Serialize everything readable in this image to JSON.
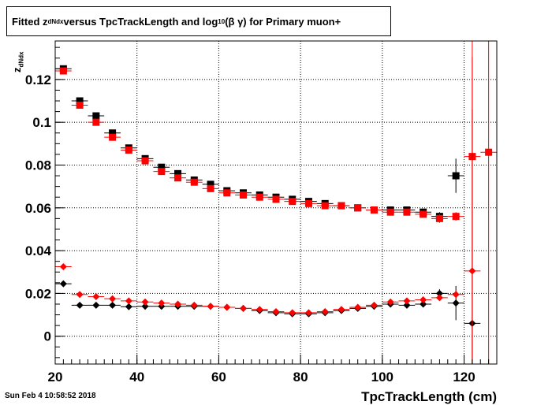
{
  "title": {
    "prefix": "Fitted  z",
    "prefix_sub": "dNdx",
    "middle": "  versus TpcTrackLength and log",
    "middle_sub": "10",
    "suffix": " (β γ) for Primary muon+"
  },
  "timestamp": "Sun Feb  4 10:58:52 2018",
  "chart_data": {
    "type": "scatter",
    "xlabel": "TpcTrackLength (cm)",
    "ylabel": "z",
    "ylabel_sub": "dNdx",
    "xlim": [
      20,
      128
    ],
    "ylim": [
      -0.013,
      0.138
    ],
    "xticks": [
      20,
      40,
      60,
      80,
      100,
      120
    ],
    "yticks": [
      0,
      0.02,
      0.04,
      0.06,
      0.08,
      0.1,
      0.12
    ],
    "ytick_labels": [
      "0",
      "0.02",
      "0.04",
      "0.06",
      "0.08",
      "0.1",
      "0.12"
    ],
    "grid": true,
    "series": [
      {
        "marker": "square",
        "color": "#000000",
        "xerr": 2,
        "x": [
          22,
          26,
          30,
          34,
          38,
          42,
          46,
          50,
          54,
          58,
          62,
          66,
          70,
          74,
          78,
          82,
          86,
          90,
          94,
          98,
          102,
          106,
          110,
          114,
          118
        ],
        "y": [
          0.125,
          0.11,
          0.103,
          0.095,
          0.088,
          0.083,
          0.079,
          0.076,
          0.073,
          0.071,
          0.068,
          0.067,
          0.066,
          0.065,
          0.064,
          0.063,
          0.062,
          0.061,
          0.06,
          0.059,
          0.059,
          0.059,
          0.058,
          0.056,
          0.075
        ],
        "yerr": [
          0.001,
          0.001,
          0.001,
          0.001,
          0.001,
          0.001,
          0.001,
          0.001,
          0.001,
          0.001,
          0.001,
          0.001,
          0.001,
          0.001,
          0.001,
          0.001,
          0.001,
          0.001,
          0.001,
          0.001,
          0.001,
          0.001,
          0.001,
          0.002,
          0.008
        ]
      },
      {
        "marker": "square",
        "color": "#ff0000",
        "xerr": 2,
        "x": [
          22,
          26,
          30,
          34,
          38,
          42,
          46,
          50,
          54,
          58,
          62,
          66,
          70,
          74,
          78,
          82,
          86,
          90,
          94,
          98,
          102,
          106,
          110,
          114,
          118,
          122,
          126
        ],
        "y": [
          0.124,
          0.108,
          0.1,
          0.093,
          0.087,
          0.082,
          0.077,
          0.074,
          0.072,
          0.069,
          0.067,
          0.066,
          0.065,
          0.064,
          0.063,
          0.062,
          0.061,
          0.061,
          0.06,
          0.059,
          0.058,
          0.058,
          0.057,
          0.055,
          0.056,
          0.084,
          0.086
        ],
        "yerr": [
          0.001,
          0.001,
          0.001,
          0.001,
          0.001,
          0.001,
          0.001,
          0.001,
          0.001,
          0.001,
          0.001,
          0.001,
          0.001,
          0.001,
          0.001,
          0.001,
          0.001,
          0.001,
          0.001,
          0.001,
          0.001,
          0.001,
          0.001,
          0.002,
          0.002,
          0.1,
          0.2
        ]
      },
      {
        "marker": "diamond",
        "color": "#000000",
        "xerr": 2,
        "x": [
          22,
          26,
          30,
          34,
          38,
          42,
          46,
          50,
          54,
          58,
          62,
          66,
          70,
          74,
          78,
          82,
          86,
          90,
          94,
          98,
          102,
          106,
          110,
          114,
          118,
          122
        ],
        "y": [
          0.0245,
          0.0145,
          0.0145,
          0.0145,
          0.0138,
          0.014,
          0.014,
          0.014,
          0.014,
          0.014,
          0.0135,
          0.013,
          0.012,
          0.011,
          0.0105,
          0.0105,
          0.011,
          0.012,
          0.013,
          0.014,
          0.015,
          0.0145,
          0.015,
          0.02,
          0.0155,
          0.006
        ],
        "yerr": [
          0.0005,
          0.0005,
          0.0005,
          0.0005,
          0.0005,
          0.0005,
          0.0005,
          0.0005,
          0.0005,
          0.0005,
          0.0005,
          0.0005,
          0.0005,
          0.0005,
          0.0005,
          0.0005,
          0.0005,
          0.0005,
          0.0005,
          0.0005,
          0.0005,
          0.0005,
          0.0005,
          0.002,
          0.008,
          0.1
        ]
      },
      {
        "marker": "diamond",
        "color": "#ff0000",
        "xerr": 2,
        "x": [
          22,
          26,
          30,
          34,
          38,
          42,
          46,
          50,
          54,
          58,
          62,
          66,
          70,
          74,
          78,
          82,
          86,
          90,
          94,
          98,
          102,
          106,
          110,
          114,
          118,
          122
        ],
        "y": [
          0.0325,
          0.0195,
          0.0185,
          0.0175,
          0.0165,
          0.016,
          0.0155,
          0.015,
          0.0145,
          0.014,
          0.0135,
          0.013,
          0.0125,
          0.0115,
          0.011,
          0.011,
          0.0115,
          0.0125,
          0.0135,
          0.0145,
          0.016,
          0.0165,
          0.017,
          0.018,
          0.0195,
          0.0305
        ],
        "yerr": [
          0.0005,
          0.0005,
          0.0005,
          0.0005,
          0.0005,
          0.0005,
          0.0005,
          0.0005,
          0.0005,
          0.0005,
          0.0005,
          0.0005,
          0.0005,
          0.0005,
          0.0005,
          0.0005,
          0.0005,
          0.0005,
          0.0005,
          0.0005,
          0.0005,
          0.0005,
          0.0005,
          0.001,
          0.002,
          0.1
        ]
      }
    ]
  }
}
